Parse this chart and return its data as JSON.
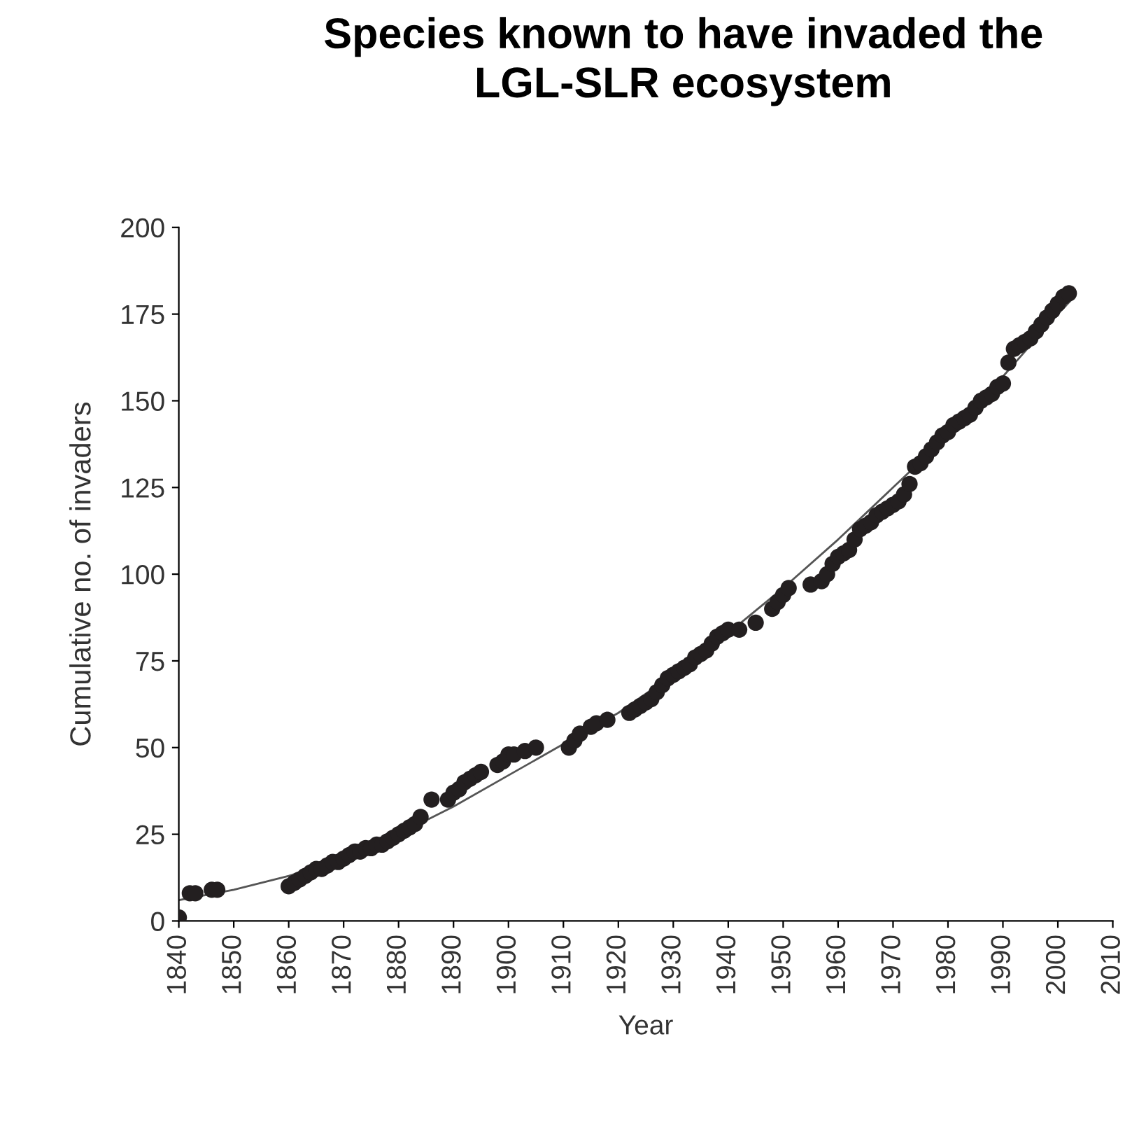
{
  "chart_data": {
    "type": "scatter",
    "title": "Species known to have invaded the\nLGL-SLR ecosystem",
    "xlabel": "Year",
    "ylabel": "Cumulative no. of invaders",
    "marker": "circle",
    "grid": false,
    "legend": false,
    "xlim": [
      1840,
      2010
    ],
    "ylim": [
      0,
      200
    ],
    "xticks": [
      1840,
      1850,
      1860,
      1870,
      1880,
      1890,
      1900,
      1910,
      1920,
      1930,
      1940,
      1950,
      1960,
      1970,
      1980,
      1990,
      2000,
      2010
    ],
    "yticks": [
      0,
      25,
      50,
      75,
      100,
      125,
      150,
      175,
      200
    ],
    "series": [
      {
        "color": "#231f20",
        "x": [
          1840,
          1842,
          1843,
          1846,
          1847,
          1860,
          1861,
          1862,
          1863,
          1864,
          1865,
          1866,
          1867,
          1868,
          1869,
          1870,
          1871,
          1872,
          1873,
          1874,
          1875,
          1876,
          1877,
          1878,
          1879,
          1880,
          1881,
          1882,
          1883,
          1884,
          1886,
          1889,
          1890,
          1891,
          1892,
          1893,
          1894,
          1895,
          1898,
          1899,
          1900,
          1901,
          1903,
          1905,
          1911,
          1912,
          1913,
          1915,
          1916,
          1918,
          1922,
          1923,
          1924,
          1925,
          1926,
          1927,
          1928,
          1929,
          1930,
          1931,
          1932,
          1933,
          1934,
          1935,
          1936,
          1937,
          1938,
          1939,
          1940,
          1942,
          1945,
          1948,
          1949,
          1950,
          1951,
          1955,
          1957,
          1958,
          1959,
          1960,
          1961,
          1962,
          1963,
          1964,
          1965,
          1966,
          1967,
          1968,
          1969,
          1970,
          1971,
          1972,
          1973,
          1974,
          1975,
          1976,
          1977,
          1978,
          1979,
          1980,
          1981,
          1982,
          1983,
          1984,
          1985,
          1986,
          1987,
          1988,
          1989,
          1990,
          1991,
          1992,
          1993,
          1994,
          1995,
          1996,
          1997,
          1998,
          1999,
          2000,
          2001,
          2002
        ],
        "values": [
          1,
          8,
          8,
          9,
          9,
          10,
          11,
          12,
          13,
          14,
          15,
          15,
          16,
          17,
          17,
          18,
          19,
          20,
          20,
          21,
          21,
          22,
          22,
          23,
          24,
          25,
          26,
          27,
          28,
          30,
          35,
          35,
          37,
          38,
          40,
          41,
          42,
          43,
          45,
          46,
          48,
          48,
          49,
          50,
          50,
          52,
          54,
          56,
          57,
          58,
          60,
          61,
          62,
          63,
          64,
          66,
          68,
          70,
          71,
          72,
          73,
          74,
          76,
          77,
          78,
          80,
          82,
          83,
          84,
          84,
          86,
          90,
          92,
          94,
          96,
          97,
          98,
          100,
          103,
          105,
          106,
          107,
          110,
          113,
          114,
          115,
          117,
          118,
          119,
          120,
          121,
          123,
          126,
          131,
          132,
          134,
          136,
          138,
          140,
          141,
          143,
          144,
          145,
          146,
          148,
          150,
          151,
          152,
          154,
          155,
          161,
          165,
          166,
          167,
          168,
          170,
          172,
          174,
          176,
          178,
          180,
          181
        ]
      },
      {
        "type": "line",
        "color": "#555555",
        "marker": "none",
        "line_style": "solid",
        "x": [
          1840,
          1850,
          1860,
          1870,
          1880,
          1890,
          1900,
          1910,
          1920,
          1930,
          1940,
          1950,
          1960,
          1970,
          1980,
          1990,
          2000,
          2003
        ],
        "values": [
          6,
          9,
          13,
          18,
          25,
          33,
          42,
          51,
          60,
          71,
          83,
          96,
          110,
          125,
          140,
          157,
          175,
          180
        ]
      }
    ]
  }
}
